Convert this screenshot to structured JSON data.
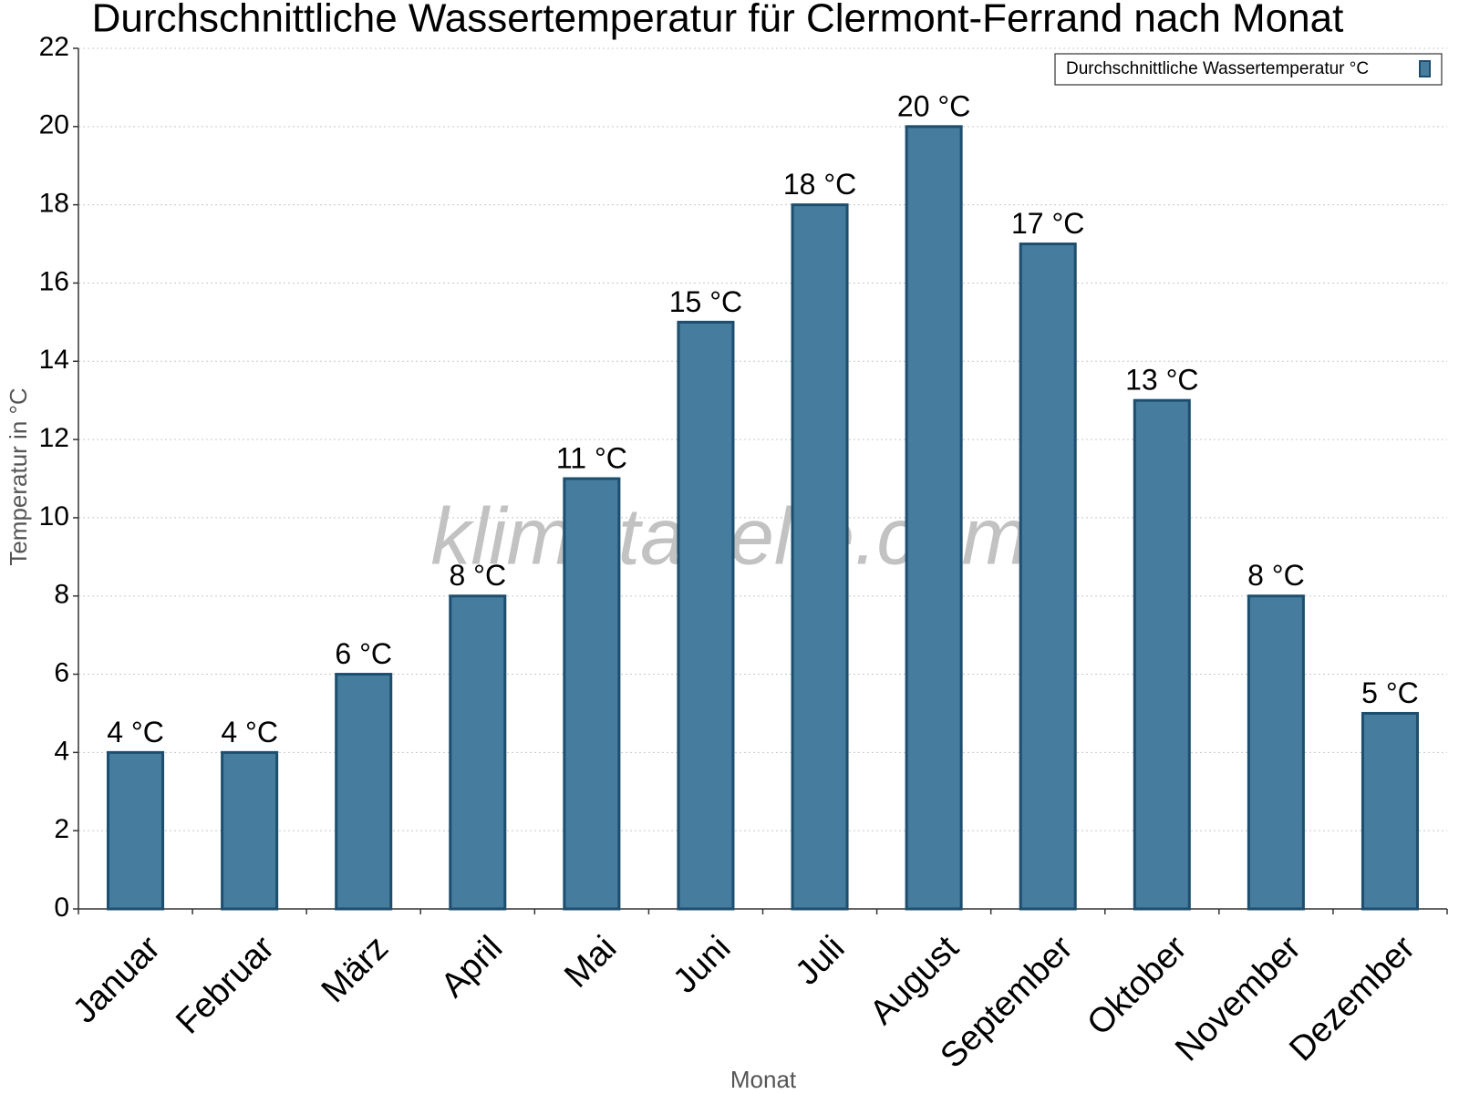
{
  "chart_data": {
    "type": "bar",
    "title": "Durchschnittliche Wassertemperatur für Clermont-Ferrand nach Monat",
    "x_label": "Monat",
    "y_label": "Temperatur in °C",
    "watermark": "klimatabelle.com",
    "categories": [
      "Januar",
      "Februar",
      "März",
      "April",
      "Mai",
      "Juni",
      "Juli",
      "August",
      "September",
      "Oktober",
      "November",
      "Dezember"
    ],
    "series": [
      {
        "name": "Durchschnittliche Wassertemperatur °C",
        "color": "#467c9e",
        "values": [
          4,
          4,
          6,
          8,
          11,
          15,
          18,
          20,
          17,
          13,
          8,
          5
        ],
        "value_labels": [
          "4 °C",
          "4 °C",
          "6 °C",
          "8 °C",
          "11 °C",
          "15 °C",
          "18 °C",
          "20 °C",
          "17 °C",
          "13 °C",
          "8 °C",
          "5 °C"
        ]
      }
    ],
    "ylim": [
      0,
      22
    ],
    "yticks": [
      0,
      2,
      4,
      6,
      8,
      10,
      12,
      14,
      16,
      18,
      20,
      22
    ],
    "grid": true,
    "legend": "top-right"
  }
}
